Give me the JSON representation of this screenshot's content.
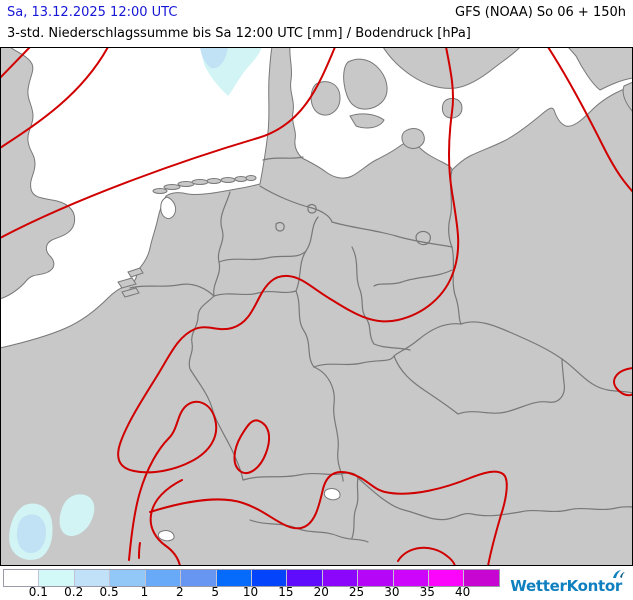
{
  "header": {
    "datetime": "Sa, 13.12.2025 12:00 UTC",
    "model_run": "GFS (NOAA) So 06 + 150h",
    "subtitle": "3-std. Niederschlagssumme bis Sa 12:00 UTC [mm] / Bodendruck [hPa]",
    "datetime_color": "#1717d6"
  },
  "map": {
    "region": "Germany and Central Europe",
    "colors": {
      "sea": "#ffffff",
      "land": "#c8c8c8",
      "border": "#787878",
      "isobar": "#d00000",
      "precip_0_1": "#d2f4f4",
      "precip_0_2": "#c0e2f4"
    }
  },
  "legend": {
    "swatch_colors": [
      "#ffffff",
      "#d2f8f8",
      "#c0e1f8",
      "#92c8f8",
      "#69aaf8",
      "#6696f2",
      "#066afb",
      "#0444fb",
      "#5e0cfb",
      "#8c06fb",
      "#b506f8",
      "#cd06fb",
      "#fb06fb",
      "#c806d2"
    ],
    "tick_labels": [
      "0.1",
      "0.2",
      "0.5",
      "1",
      "2",
      "5",
      "10",
      "15",
      "20",
      "25",
      "30",
      "35",
      "40"
    ]
  },
  "branding": {
    "logo_text": "WetterKontor",
    "logo_color": "#0f80bf"
  }
}
